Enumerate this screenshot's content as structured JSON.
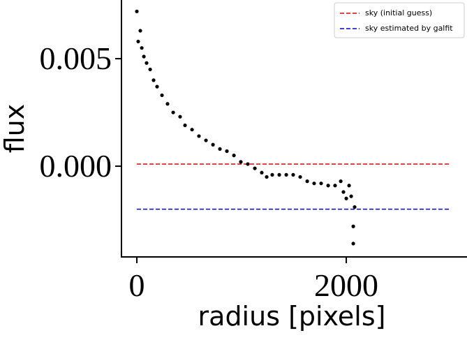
{
  "chart_data": {
    "type": "scatter",
    "xlabel": "radius [pixels]",
    "ylabel": "flux",
    "x": [
      0,
      13,
      33,
      47,
      67,
      93,
      127,
      160,
      193,
      240,
      293,
      347,
      413,
      460,
      527,
      593,
      660,
      727,
      793,
      860,
      927,
      993,
      1060,
      1127,
      1193,
      1240,
      1293,
      1360,
      1427,
      1493,
      1560,
      1627,
      1693,
      1760,
      1827,
      1893,
      1947,
      1973,
      2000,
      2027,
      2047,
      2080,
      2067,
      2067
    ],
    "values": [
      0.0072,
      0.0058,
      0.0063,
      0.0055,
      0.0051,
      0.0048,
      0.0045,
      0.004,
      0.0037,
      0.0033,
      0.0029,
      0.0025,
      0.0023,
      0.0019,
      0.0017,
      0.0014,
      0.0012,
      0.001,
      0.0008,
      0.0007,
      0.0005,
      0.0002,
      0.0001,
      -0.0001,
      -0.0003,
      -0.0005,
      -0.0004,
      -0.0004,
      -0.0004,
      -0.0004,
      -0.0005,
      -0.0007,
      -0.0008,
      -0.0008,
      -0.0009,
      -0.0009,
      -0.0007,
      -0.0012,
      -0.0015,
      -0.0009,
      -0.0014,
      -0.0019,
      -0.0028,
      -0.0036
    ],
    "color": "#000000",
    "hlines": [
      {
        "name": "sky (initial guess)",
        "color": "#e00000",
        "value": 0.0001,
        "xmin": 0,
        "xmax": 3000
      },
      {
        "name": "sky estimated by galfit",
        "color": "#0000d0",
        "value": -0.002,
        "xmin": 0,
        "xmax": 3000
      }
    ],
    "xlim": [
      -147,
      3153
    ],
    "ylim": [
      -0.00422,
      0.00773
    ],
    "xticks": [
      0,
      2000
    ],
    "yticks": [
      {
        "value": 0,
        "label": "0.000"
      },
      0.005
    ],
    "legend": "upper right"
  }
}
